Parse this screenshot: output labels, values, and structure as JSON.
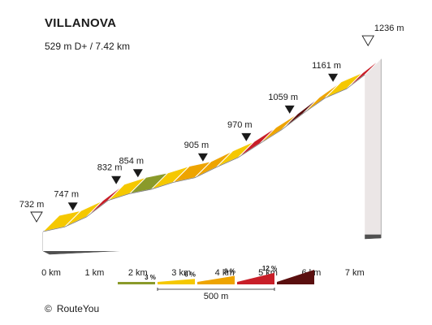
{
  "title": "VILLANOVA",
  "subtitle": "529 m D+ / 7.42 km",
  "credit": {
    "symbol": "©",
    "text": "RouteYou"
  },
  "chart_data": {
    "type": "area",
    "title": "VILLANOVA",
    "subtitle": "529 m D+ / 7.42 km",
    "x_unit": "km",
    "y_unit": "m",
    "x_ticks": [
      0,
      1,
      2,
      3,
      4,
      5,
      6,
      7
    ],
    "x_tick_labels": [
      "0 km",
      "1 km",
      "2 km",
      "3 km",
      "4 km",
      "5 km",
      "6 km",
      "7 km"
    ],
    "xlim": [
      0,
      7.42
    ],
    "ylim": [
      732,
      1236
    ],
    "profile": {
      "x": [
        0,
        0.5,
        1,
        1.5,
        2,
        2.5,
        3,
        3.5,
        4,
        4.5,
        5,
        5.5,
        6,
        6.5,
        7,
        7.42
      ],
      "y": [
        732,
        747,
        779,
        832,
        854,
        868,
        890,
        905,
        939,
        970,
        1015,
        1059,
        1112,
        1161,
        1191,
        1236
      ]
    },
    "segments": [
      {
        "from_km": 0,
        "to_km": 0.5,
        "class": "6%"
      },
      {
        "from_km": 0.5,
        "to_km": 1,
        "class": "6%"
      },
      {
        "from_km": 1,
        "to_km": 1.5,
        "class": "12%"
      },
      {
        "from_km": 1.5,
        "to_km": 2,
        "class": "6%"
      },
      {
        "from_km": 2,
        "to_km": 2.5,
        "class": "3%"
      },
      {
        "from_km": 2.5,
        "to_km": 3,
        "class": "6%"
      },
      {
        "from_km": 3,
        "to_km": 3.5,
        "class": "9%"
      },
      {
        "from_km": 3.5,
        "to_km": 4,
        "class": "9%"
      },
      {
        "from_km": 4,
        "to_km": 4.5,
        "class": "6%"
      },
      {
        "from_km": 4.5,
        "to_km": 5,
        "class": "12%"
      },
      {
        "from_km": 5,
        "to_km": 5.5,
        "class": "9%"
      },
      {
        "from_km": 5.5,
        "to_km": 6,
        "class": ">12%"
      },
      {
        "from_km": 6,
        "to_km": 6.5,
        "class": "9%"
      },
      {
        "from_km": 6.5,
        "to_km": 7,
        "class": "6%"
      },
      {
        "from_km": 7,
        "to_km": 7.42,
        "class": "12%"
      }
    ],
    "markers": [
      {
        "km": 0,
        "elev": 732,
        "label": "732 m",
        "type": "start"
      },
      {
        "km": 0.5,
        "elev": 747,
        "label": "747 m",
        "type": "point"
      },
      {
        "km": 1.5,
        "elev": 832,
        "label": "832 m",
        "type": "point"
      },
      {
        "km": 2,
        "elev": 854,
        "label": "854 m",
        "type": "point"
      },
      {
        "km": 3.5,
        "elev": 905,
        "label": "905 m",
        "type": "point"
      },
      {
        "km": 4.5,
        "elev": 970,
        "label": "970 m",
        "type": "point"
      },
      {
        "km": 5.5,
        "elev": 1059,
        "label": "1059 m",
        "type": "point"
      },
      {
        "km": 6.5,
        "elev": 1161,
        "label": "1161 m",
        "type": "point"
      },
      {
        "km": 7.42,
        "elev": 1236,
        "label": "1236 m",
        "type": "end"
      }
    ],
    "legend": {
      "scale_label": "500 m",
      "items": [
        {
          "label": "3 %",
          "class": "3%"
        },
        {
          "label": "6 %",
          "class": "6%"
        },
        {
          "label": "9 %",
          "class": "9%"
        },
        {
          "label": "12 %",
          "class": "12%"
        },
        {
          "label": "",
          "class": ">12%"
        }
      ]
    },
    "colors": {
      "3%": "#8a9a2a",
      "6%": "#f5c800",
      "9%": "#eea400",
      "12%": "#c81e28",
      ">12%": "#5a0f0f",
      "wall": "#ebe6e6",
      "base": "#505050",
      "outline": "#7a7a7a"
    }
  }
}
